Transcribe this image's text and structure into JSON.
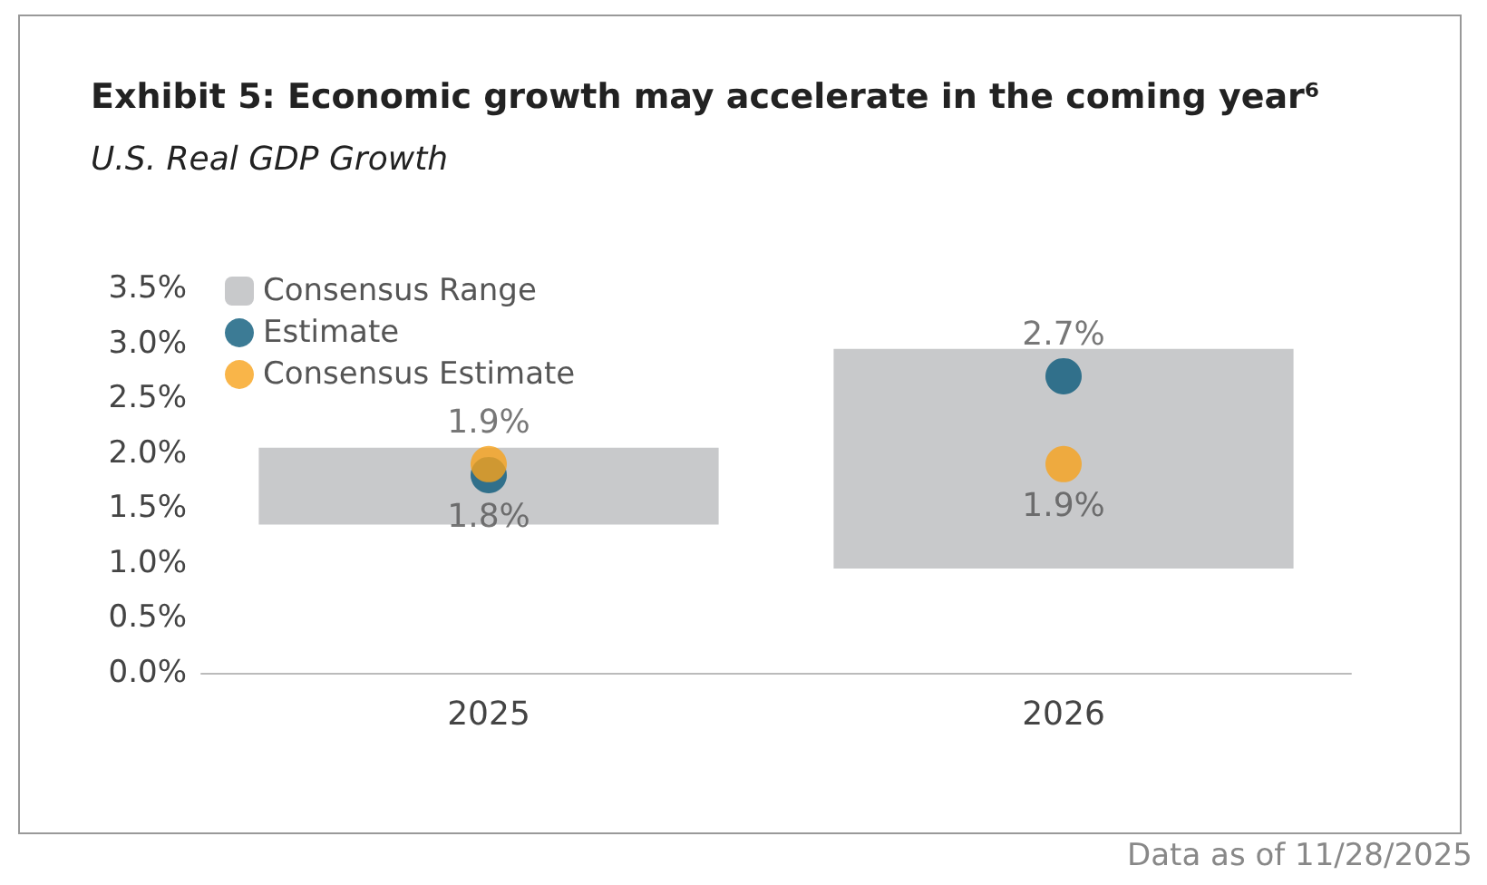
{
  "chart_data": {
    "type": "bar",
    "title": "Exhibit 5: Economic growth may accelerate in the coming year⁶",
    "subtitle": "U.S. Real GDP Growth",
    "categories": [
      "2025",
      "2026"
    ],
    "series": [
      {
        "name": "Consensus Range",
        "color": "#c8c9cb",
        "base": [
          1.35,
          0.95
        ],
        "values": [
          0.7,
          2.0
        ]
      },
      {
        "name": "Estimate",
        "type": "scatter",
        "color": "#0b5a7a",
        "values": [
          1.8,
          2.7
        ],
        "value_labels": [
          "1.8%",
          "2.7%"
        ]
      },
      {
        "name": "Consensus Estimate",
        "type": "scatter",
        "color": "#f7a21b",
        "values": [
          1.9,
          1.9
        ],
        "value_labels": [
          "1.9%",
          "1.9%"
        ]
      }
    ],
    "ylim": [
      0,
      3.5
    ],
    "yticks": [
      {
        "value": 0,
        "label": "0.0%"
      },
      {
        "value": 0.5,
        "label": "0.5%"
      },
      {
        "value": 1,
        "label": "1.0%"
      },
      {
        "value": 1.5,
        "label": "1.5%"
      },
      {
        "value": 2,
        "label": "2.0%"
      },
      {
        "value": 2.5,
        "label": "2.5%"
      },
      {
        "value": 3,
        "label": "3.0%"
      },
      {
        "value": 3.5,
        "label": "3.5%"
      }
    ],
    "grid": false,
    "legend": "top left",
    "marker": "circle",
    "annotations": [
      "Data as of 11/28/2025"
    ]
  }
}
